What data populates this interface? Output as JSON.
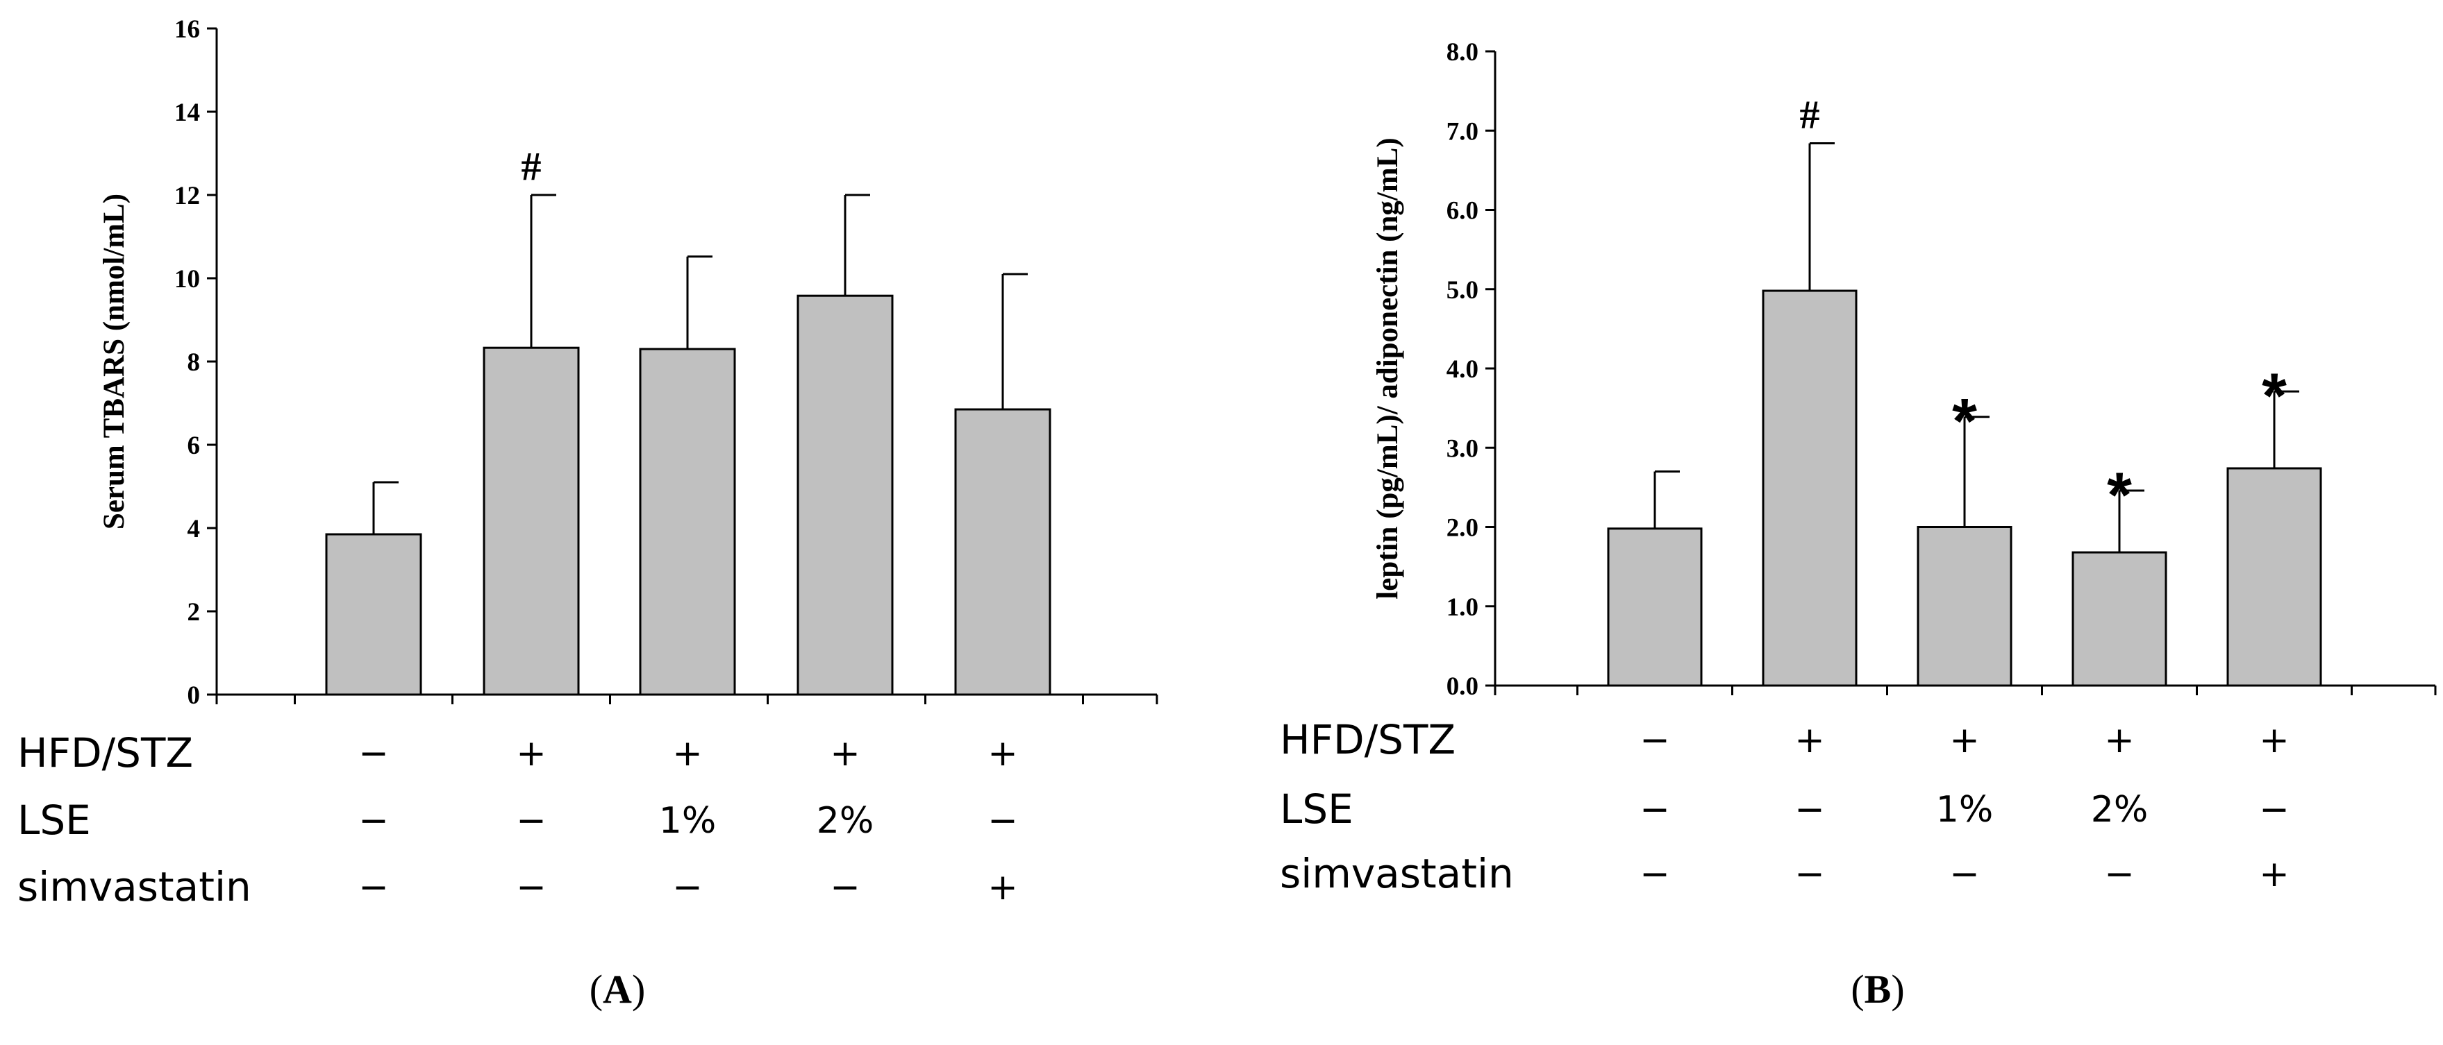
{
  "chart_data": [
    {
      "type": "bar",
      "panel_label": "A",
      "title": "",
      "ylabel": "Serum TBARS (nmol/mL)",
      "xlabel": "",
      "ylim": [
        0,
        16
      ],
      "yticks": [
        "0",
        "2",
        "4",
        "6",
        "8",
        "10",
        "12",
        "14",
        "16"
      ],
      "ytick_values": [
        0,
        2,
        4,
        6,
        8,
        10,
        12,
        14,
        16
      ],
      "values": [
        3.85,
        8.33,
        8.3,
        9.58,
        6.85
      ],
      "errors": [
        1.25,
        3.67,
        2.22,
        2.42,
        3.25
      ],
      "annotations": [
        "",
        "#",
        "",
        "",
        ""
      ],
      "bar_color": "#c0c0c0",
      "conditions": [
        {
          "label": "HFD/STZ",
          "values": [
            "−",
            "+",
            "+",
            "+",
            "+"
          ]
        },
        {
          "label": "LSE",
          "values": [
            "−",
            "−",
            "1%",
            "2%",
            "−"
          ]
        },
        {
          "label": "simvastatin",
          "values": [
            "−",
            "−",
            "−",
            "−",
            "+"
          ]
        }
      ]
    },
    {
      "type": "bar",
      "panel_label": "B",
      "title": "",
      "ylabel": "leptin (pg/mL)/ adiponectin (ng/mL)",
      "xlabel": "",
      "ylim": [
        0,
        8
      ],
      "yticks": [
        "0.0",
        "1.0",
        "2.0",
        "3.0",
        "4.0",
        "5.0",
        "6.0",
        "7.0",
        "8.0"
      ],
      "ytick_values": [
        0,
        1,
        2,
        3,
        4,
        5,
        6,
        7,
        8
      ],
      "values": [
        1.98,
        4.98,
        2.0,
        1.68,
        2.74
      ],
      "errors": [
        0.72,
        1.86,
        1.39,
        0.78,
        0.97
      ],
      "annotations": [
        "",
        "#",
        "*",
        "*",
        "*"
      ],
      "bar_color": "#c0c0c0",
      "conditions": [
        {
          "label": "HFD/STZ",
          "values": [
            "−",
            "+",
            "+",
            "+",
            "+"
          ]
        },
        {
          "label": "LSE",
          "values": [
            "−",
            "−",
            "1%",
            "2%",
            "−"
          ]
        },
        {
          "label": "simvastatin",
          "values": [
            "−",
            "−",
            "−",
            "−",
            "+"
          ]
        }
      ]
    }
  ]
}
